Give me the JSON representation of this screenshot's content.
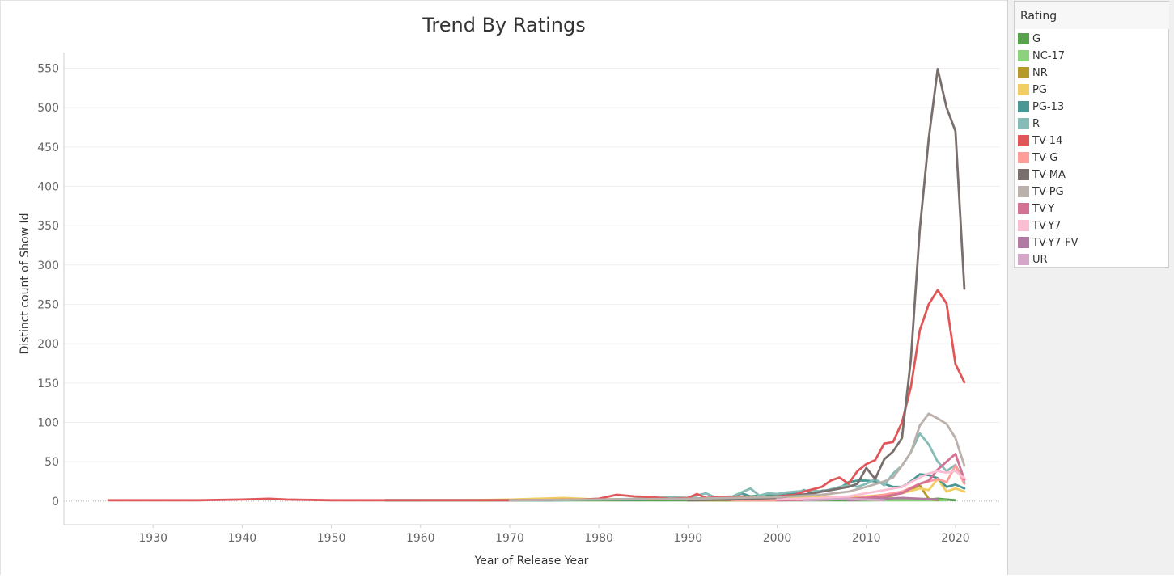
{
  "chart_data": {
    "type": "line",
    "title": "Trend By Ratings",
    "xlabel": "Year of Release Year",
    "ylabel": "Distinct count of Show Id",
    "xlim": [
      1920,
      2025
    ],
    "ylim": [
      -30,
      570
    ],
    "x_ticks": [
      1930,
      1940,
      1950,
      1960,
      1970,
      1980,
      1990,
      2000,
      2010,
      2020
    ],
    "y_ticks": [
      0,
      50,
      100,
      150,
      200,
      250,
      300,
      350,
      400,
      450,
      500,
      550
    ],
    "grid": true,
    "legend_title": "Rating",
    "legend_position": "right",
    "series": [
      {
        "name": "G",
        "color": "#59a14f",
        "points": [
          [
            1956,
            1
          ],
          [
            1960,
            1
          ],
          [
            1965,
            1
          ],
          [
            1970,
            1
          ],
          [
            1975,
            1
          ],
          [
            1980,
            1
          ],
          [
            1990,
            1
          ],
          [
            2000,
            1
          ],
          [
            2005,
            1
          ],
          [
            2010,
            1
          ],
          [
            2014,
            2
          ],
          [
            2016,
            3
          ],
          [
            2017,
            2
          ],
          [
            2018,
            3
          ],
          [
            2019,
            2
          ],
          [
            2020,
            1
          ]
        ]
      },
      {
        "name": "NC-17",
        "color": "#8cd17d",
        "points": [
          [
            2009,
            1
          ],
          [
            2012,
            1
          ],
          [
            2015,
            1
          ],
          [
            2017,
            1
          ],
          [
            2019,
            1
          ]
        ]
      },
      {
        "name": "NR",
        "color": "#b6992d",
        "points": [
          [
            1990,
            1
          ],
          [
            2000,
            1
          ],
          [
            2005,
            2
          ],
          [
            2008,
            3
          ],
          [
            2010,
            4
          ],
          [
            2012,
            5
          ],
          [
            2013,
            7
          ],
          [
            2014,
            12
          ],
          [
            2015,
            15
          ],
          [
            2016,
            20
          ],
          [
            2017,
            3
          ],
          [
            2018,
            1
          ]
        ]
      },
      {
        "name": "PG",
        "color": "#f1ce63",
        "points": [
          [
            1960,
            1
          ],
          [
            1965,
            1
          ],
          [
            1970,
            2
          ],
          [
            1976,
            4
          ],
          [
            1980,
            2
          ],
          [
            1985,
            3
          ],
          [
            1990,
            3
          ],
          [
            1995,
            4
          ],
          [
            2000,
            5
          ],
          [
            2005,
            6
          ],
          [
            2008,
            5
          ],
          [
            2010,
            6
          ],
          [
            2012,
            8
          ],
          [
            2014,
            10
          ],
          [
            2016,
            16
          ],
          [
            2017,
            14
          ],
          [
            2018,
            28
          ],
          [
            2019,
            12
          ],
          [
            2020,
            16
          ],
          [
            2021,
            12
          ]
        ]
      },
      {
        "name": "PG-13",
        "color": "#499894",
        "points": [
          [
            1956,
            1
          ],
          [
            1960,
            1
          ],
          [
            1965,
            1
          ],
          [
            1970,
            1
          ],
          [
            1975,
            1
          ],
          [
            1980,
            2
          ],
          [
            1985,
            2
          ],
          [
            1990,
            3
          ],
          [
            1993,
            4
          ],
          [
            1995,
            5
          ],
          [
            1996,
            10
          ],
          [
            1997,
            6
          ],
          [
            1998,
            7
          ],
          [
            1999,
            8
          ],
          [
            2000,
            8
          ],
          [
            2001,
            10
          ],
          [
            2002,
            9
          ],
          [
            2003,
            14
          ],
          [
            2004,
            10
          ],
          [
            2005,
            13
          ],
          [
            2006,
            14
          ],
          [
            2007,
            16
          ],
          [
            2008,
            24
          ],
          [
            2009,
            26
          ],
          [
            2010,
            26
          ],
          [
            2011,
            25
          ],
          [
            2012,
            22
          ],
          [
            2013,
            18
          ],
          [
            2014,
            18
          ],
          [
            2015,
            25
          ],
          [
            2016,
            34
          ],
          [
            2017,
            33
          ],
          [
            2018,
            29
          ],
          [
            2019,
            18
          ],
          [
            2020,
            21
          ],
          [
            2021,
            16
          ]
        ]
      },
      {
        "name": "R",
        "color": "#86bcb6",
        "points": [
          [
            1975,
            1
          ],
          [
            1980,
            2
          ],
          [
            1985,
            3
          ],
          [
            1988,
            5
          ],
          [
            1990,
            4
          ],
          [
            1992,
            10
          ],
          [
            1993,
            5
          ],
          [
            1995,
            6
          ],
          [
            1997,
            16
          ],
          [
            1998,
            7
          ],
          [
            1999,
            10
          ],
          [
            2000,
            9
          ],
          [
            2001,
            11
          ],
          [
            2002,
            12
          ],
          [
            2003,
            13
          ],
          [
            2004,
            14
          ],
          [
            2005,
            12
          ],
          [
            2006,
            15
          ],
          [
            2007,
            18
          ],
          [
            2008,
            20
          ],
          [
            2009,
            18
          ],
          [
            2010,
            22
          ],
          [
            2011,
            28
          ],
          [
            2012,
            20
          ],
          [
            2013,
            35
          ],
          [
            2014,
            45
          ],
          [
            2015,
            62
          ],
          [
            2016,
            86
          ],
          [
            2017,
            72
          ],
          [
            2018,
            50
          ],
          [
            2019,
            38
          ],
          [
            2020,
            46
          ],
          [
            2021,
            24
          ]
        ]
      },
      {
        "name": "TV-14",
        "color": "#e15759",
        "points": [
          [
            1925,
            1
          ],
          [
            1930,
            1
          ],
          [
            1935,
            1
          ],
          [
            1940,
            2
          ],
          [
            1943,
            3
          ],
          [
            1945,
            2
          ],
          [
            1950,
            1
          ],
          [
            1955,
            1
          ],
          [
            1960,
            1
          ],
          [
            1970,
            1
          ],
          [
            1978,
            2
          ],
          [
            1980,
            3
          ],
          [
            1982,
            8
          ],
          [
            1984,
            6
          ],
          [
            1986,
            5
          ],
          [
            1988,
            3
          ],
          [
            1990,
            4
          ],
          [
            1991,
            9
          ],
          [
            1992,
            4
          ],
          [
            1994,
            5
          ],
          [
            1996,
            6
          ],
          [
            1998,
            5
          ],
          [
            2000,
            6
          ],
          [
            2002,
            8
          ],
          [
            2003,
            12
          ],
          [
            2004,
            15
          ],
          [
            2005,
            18
          ],
          [
            2006,
            26
          ],
          [
            2007,
            30
          ],
          [
            2008,
            22
          ],
          [
            2009,
            38
          ],
          [
            2010,
            47
          ],
          [
            2011,
            52
          ],
          [
            2012,
            73
          ],
          [
            2013,
            75
          ],
          [
            2014,
            100
          ],
          [
            2015,
            145
          ],
          [
            2016,
            217
          ],
          [
            2017,
            250
          ],
          [
            2018,
            268
          ],
          [
            2019,
            251
          ],
          [
            2020,
            174
          ],
          [
            2021,
            151
          ]
        ]
      },
      {
        "name": "TV-G",
        "color": "#ff9d9a",
        "points": [
          [
            1995,
            1
          ],
          [
            2000,
            1
          ],
          [
            2005,
            2
          ],
          [
            2008,
            3
          ],
          [
            2010,
            5
          ],
          [
            2012,
            8
          ],
          [
            2014,
            12
          ],
          [
            2016,
            22
          ],
          [
            2017,
            25
          ],
          [
            2018,
            28
          ],
          [
            2019,
            24
          ],
          [
            2020,
            45
          ],
          [
            2021,
            22
          ]
        ]
      },
      {
        "name": "TV-MA",
        "color": "#79706e",
        "points": [
          [
            1990,
            1
          ],
          [
            1995,
            2
          ],
          [
            2000,
            4
          ],
          [
            2002,
            7
          ],
          [
            2004,
            10
          ],
          [
            2006,
            14
          ],
          [
            2008,
            18
          ],
          [
            2009,
            22
          ],
          [
            2010,
            42
          ],
          [
            2011,
            28
          ],
          [
            2012,
            53
          ],
          [
            2013,
            63
          ],
          [
            2014,
            80
          ],
          [
            2015,
            180
          ],
          [
            2016,
            345
          ],
          [
            2017,
            460
          ],
          [
            2018,
            549
          ],
          [
            2019,
            500
          ],
          [
            2020,
            470
          ],
          [
            2021,
            270
          ]
        ]
      },
      {
        "name": "TV-PG",
        "color": "#bab0ac",
        "points": [
          [
            1970,
            1
          ],
          [
            1980,
            2
          ],
          [
            1990,
            3
          ],
          [
            1995,
            4
          ],
          [
            2000,
            5
          ],
          [
            2005,
            8
          ],
          [
            2008,
            12
          ],
          [
            2010,
            18
          ],
          [
            2012,
            25
          ],
          [
            2013,
            30
          ],
          [
            2014,
            45
          ],
          [
            2015,
            62
          ],
          [
            2016,
            96
          ],
          [
            2017,
            111
          ],
          [
            2018,
            105
          ],
          [
            2019,
            98
          ],
          [
            2020,
            80
          ],
          [
            2021,
            45
          ]
        ]
      },
      {
        "name": "TV-Y",
        "color": "#d37295",
        "points": [
          [
            2000,
            1
          ],
          [
            2005,
            2
          ],
          [
            2008,
            3
          ],
          [
            2010,
            4
          ],
          [
            2012,
            6
          ],
          [
            2014,
            10
          ],
          [
            2016,
            22
          ],
          [
            2017,
            26
          ],
          [
            2018,
            40
          ],
          [
            2019,
            50
          ],
          [
            2020,
            60
          ],
          [
            2021,
            27
          ]
        ]
      },
      {
        "name": "TV-Y7",
        "color": "#fabfd2",
        "points": [
          [
            2000,
            2
          ],
          [
            2005,
            4
          ],
          [
            2008,
            6
          ],
          [
            2010,
            10
          ],
          [
            2012,
            14
          ],
          [
            2014,
            18
          ],
          [
            2015,
            24
          ],
          [
            2016,
            30
          ],
          [
            2017,
            35
          ],
          [
            2018,
            38
          ],
          [
            2019,
            36
          ],
          [
            2020,
            38
          ],
          [
            2021,
            29
          ]
        ]
      },
      {
        "name": "TV-Y7-FV",
        "color": "#b07aa1",
        "points": [
          [
            2008,
            1
          ],
          [
            2010,
            2
          ],
          [
            2012,
            3
          ],
          [
            2014,
            4
          ],
          [
            2016,
            3
          ],
          [
            2018,
            2
          ]
        ]
      },
      {
        "name": "UR",
        "color": "#d4a6c8",
        "points": [
          [
            2003,
            1
          ],
          [
            2006,
            2
          ],
          [
            2008,
            3
          ],
          [
            2010,
            2
          ],
          [
            2012,
            1
          ]
        ]
      }
    ]
  }
}
